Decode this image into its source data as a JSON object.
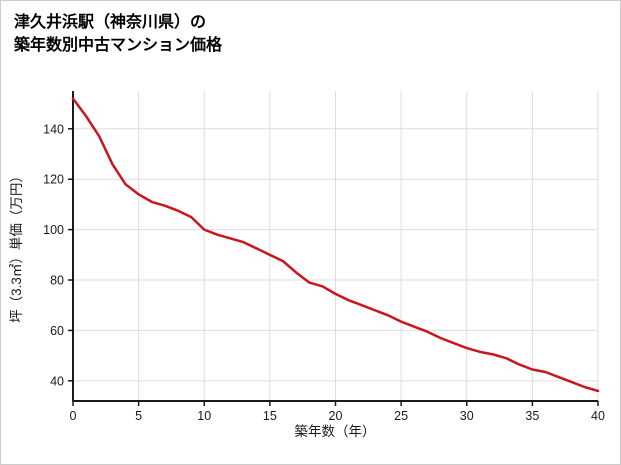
{
  "page": {
    "title_line1": "津久井浜駅（神奈川県）の",
    "title_line2": "築年数別中古マンション価格"
  },
  "chart_data": {
    "type": "line",
    "title": "津久井浜駅（神奈川県）の築年数別中古マンション価格",
    "xlabel": "築年数（年）",
    "ylabel": "坪（3.3㎡）単価（万円）",
    "x": [
      0,
      1,
      2,
      3,
      4,
      5,
      6,
      7,
      8,
      9,
      10,
      11,
      12,
      13,
      14,
      15,
      16,
      17,
      18,
      19,
      20,
      21,
      22,
      23,
      24,
      25,
      26,
      27,
      28,
      29,
      30,
      31,
      32,
      33,
      34,
      35,
      36,
      37,
      38,
      39,
      40
    ],
    "y": [
      152,
      145,
      137,
      126,
      118,
      114,
      111,
      109.5,
      107.5,
      105,
      100,
      98,
      96.5,
      95,
      92.5,
      90,
      87.5,
      83,
      79,
      77.5,
      74.5,
      72,
      70,
      68,
      66,
      63.5,
      61.5,
      59.5,
      57,
      55,
      53,
      51.5,
      50.5,
      49,
      46.5,
      44.5,
      43.5,
      41.5,
      39.5,
      37.5,
      36
    ],
    "xlim": [
      0,
      40
    ],
    "ylim": [
      32,
      155
    ],
    "x_ticks": [
      0,
      5,
      10,
      15,
      20,
      25,
      30,
      35,
      40
    ],
    "y_ticks": [
      40,
      60,
      80,
      100,
      120,
      140
    ],
    "grid": true,
    "legend": "none",
    "line_color": "#c9151e",
    "grid_color": "#dddddd",
    "axis_color": "#1a1a1a"
  }
}
